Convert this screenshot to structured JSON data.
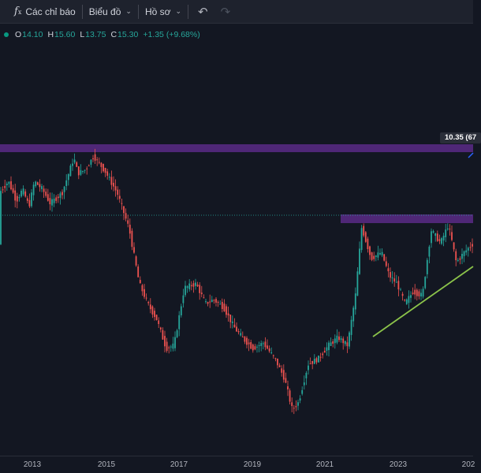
{
  "toolbar": {
    "indicators_label": "Các chỉ báo",
    "chart_type_label": "Biểu đồ",
    "profile_label": "Hồ sơ",
    "indicators_icon": "fx-icon",
    "undo_icon": "undo-icon",
    "redo_icon": "redo-icon"
  },
  "legend": {
    "open_key": "O",
    "open": "14.10",
    "high_key": "H",
    "high": "15.60",
    "low_key": "L",
    "low": "13.75",
    "close_key": "C",
    "close": "15.30",
    "change": "+1.35 (+9.68%)",
    "color_up": "#26a69a"
  },
  "price_label": "10.35 (67",
  "chart_data": {
    "type": "candlestick",
    "x_ticks": [
      "2013",
      "2015",
      "2017",
      "2019",
      "2021",
      "2023",
      "202"
    ],
    "colors": {
      "up": "#26a69a",
      "down": "#ef5350",
      "zone": "#5b2a86",
      "trendline": "#8bc34a"
    },
    "resistance_zone_upper": "2012–2015 highs",
    "resistance_zone_lower": "2021–2024 highs",
    "trendline": "rising support line 2022–2024"
  }
}
